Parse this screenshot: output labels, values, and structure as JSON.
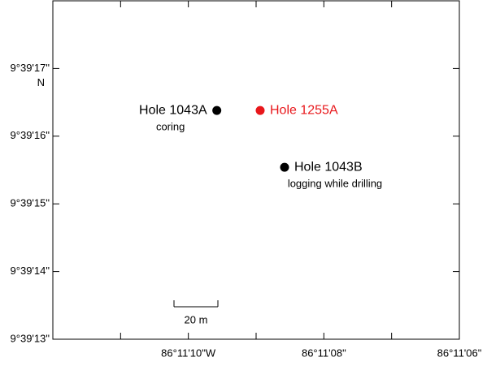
{
  "chart_data": {
    "type": "scatter",
    "xlim": [
      12,
      6
    ],
    "ylim": [
      13,
      18
    ],
    "xticks": [
      {
        "value": 10,
        "label": "86°11'10\"W"
      },
      {
        "value": 8,
        "label": "86°11'08\""
      },
      {
        "value": 6,
        "label": "86°11'06\""
      }
    ],
    "xminor_ticks": [
      11,
      9,
      7
    ],
    "yticks": [
      {
        "value": 13,
        "label": "9°39'13\""
      },
      {
        "value": 14,
        "label": "9°39'14\""
      },
      {
        "value": 15,
        "label": "9°39'15\""
      },
      {
        "value": 16,
        "label": "9°39'16\""
      },
      {
        "value": 17,
        "label": "9°39'17\""
      }
    ],
    "y_note": "N",
    "points": [
      {
        "name": "Hole 1043A",
        "note": "coring",
        "color": "#000000",
        "x": 9.58,
        "y": 16.38
      },
      {
        "name": "Hole 1255A",
        "color": "#e8171b",
        "x": 8.94,
        "y": 16.38
      },
      {
        "name": "Hole 1043B",
        "note": "logging while drilling",
        "color": "#000000",
        "x": 8.58,
        "y": 15.54
      }
    ],
    "scale_bar": "20 m"
  }
}
